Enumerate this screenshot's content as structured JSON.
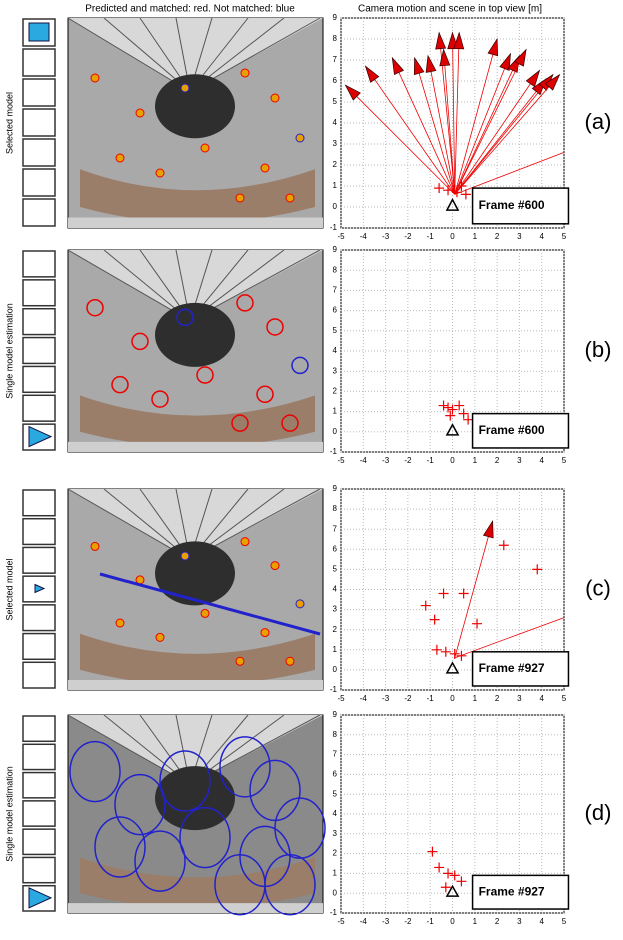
{
  "header": {
    "left": "Predicted and matched: red. Not matched: blue",
    "right": "Camera motion and scene in top view [m]"
  },
  "plot": {
    "xlim": [
      -5,
      5
    ],
    "ylim": [
      -1,
      9
    ],
    "xticks": [
      -5,
      -4,
      -3,
      -2,
      -1,
      0,
      1,
      2,
      3,
      4,
      5
    ],
    "yticks": [
      -1,
      0,
      1,
      2,
      3,
      4,
      5,
      6,
      7,
      8,
      9
    ]
  },
  "panels": [
    {
      "letter": "(a)",
      "sidebar_label": "Selected model",
      "frame": "Frame #600",
      "arrows": [
        [
          -4.8,
          5.8
        ],
        [
          -3.9,
          6.7
        ],
        [
          -2.7,
          7.1
        ],
        [
          -1.7,
          7.1
        ],
        [
          -1.1,
          7.2
        ],
        [
          -0.6,
          8.3
        ],
        [
          -0.4,
          7.5
        ],
        [
          0,
          8.3
        ],
        [
          0.3,
          8.3
        ],
        [
          2,
          8
        ],
        [
          2.6,
          7.3
        ],
        [
          3,
          7.2
        ],
        [
          3.3,
          7.5
        ],
        [
          3.9,
          6.5
        ],
        [
          4.2,
          6.1
        ],
        [
          4.5,
          6.3
        ],
        [
          4.8,
          6.3
        ]
      ],
      "points": [
        [
          -0.6,
          0.9
        ],
        [
          -0.2,
          0.8
        ],
        [
          0.2,
          0.7
        ],
        [
          0.4,
          1
        ],
        [
          0.6,
          0.6
        ]
      ]
    },
    {
      "letter": "(b)",
      "sidebar_label": "Single model estimation",
      "frame": "Frame #600",
      "points": [
        [
          -0.4,
          1.3
        ],
        [
          -0.2,
          1.2
        ],
        [
          0,
          1.1
        ],
        [
          0.3,
          1.3
        ],
        [
          0.5,
          0.9
        ],
        [
          0.7,
          0.6
        ],
        [
          -0.1,
          0.8
        ]
      ]
    },
    {
      "letter": "(c)",
      "sidebar_label": "Selected model",
      "frame": "Frame #927",
      "arrows": [
        [
          1.8,
          7.4
        ]
      ],
      "points": [
        [
          -0.7,
          1
        ],
        [
          -0.3,
          0.9
        ],
        [
          0.1,
          0.8
        ],
        [
          0.4,
          0.7
        ],
        [
          -1.2,
          3.2
        ],
        [
          -0.8,
          2.5
        ],
        [
          0.5,
          3.8
        ],
        [
          1.1,
          2.3
        ],
        [
          2.3,
          6.2
        ],
        [
          3.8,
          5
        ],
        [
          -0.4,
          3.8
        ]
      ]
    },
    {
      "letter": "(d)",
      "sidebar_label": "Single model estimation",
      "frame": "Frame #927",
      "points": [
        [
          -0.9,
          2.1
        ],
        [
          -0.6,
          1.3
        ],
        [
          -0.2,
          1
        ],
        [
          0.1,
          0.9
        ],
        [
          0.4,
          0.6
        ],
        [
          -0.3,
          0.3
        ]
      ]
    }
  ]
}
